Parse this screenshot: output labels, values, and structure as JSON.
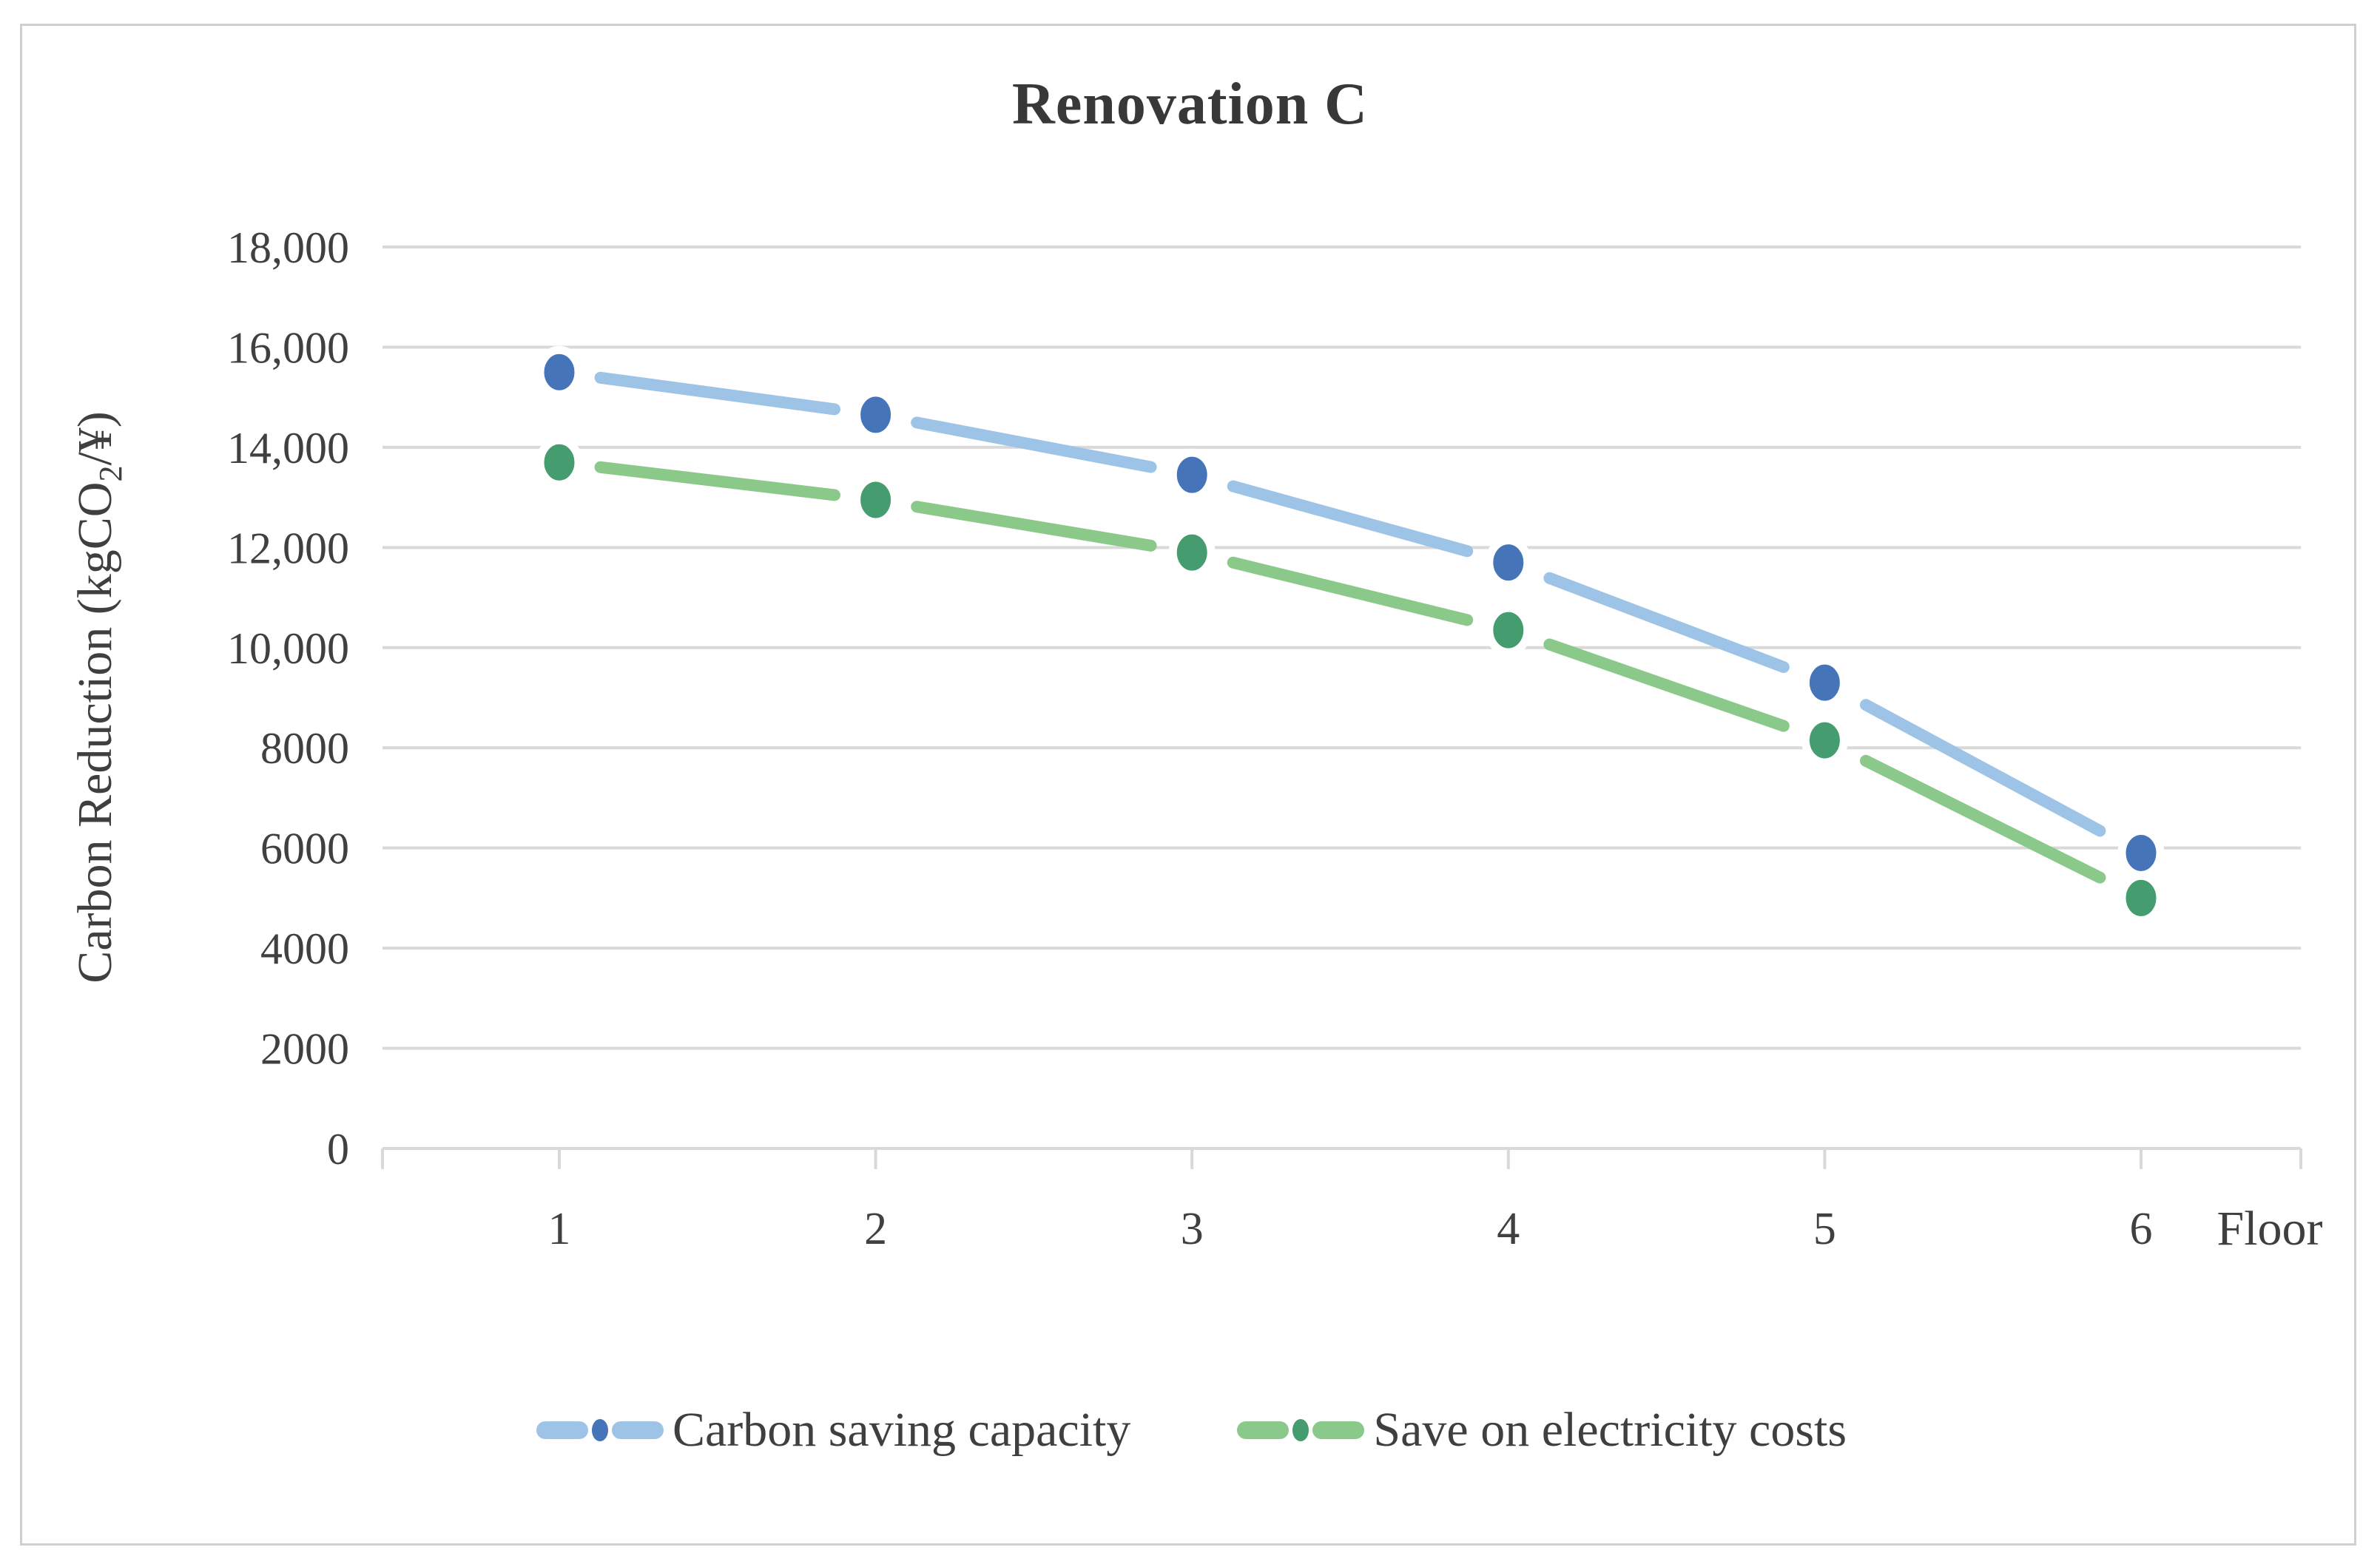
{
  "chart": {
    "title": "Renovation C",
    "xlabel": "Floor",
    "ylabel_parts": {
      "pre": "Carbon Reduction (kgCO",
      "sub": "2",
      "post": "/¥)"
    }
  },
  "chart_data": {
    "type": "line",
    "title": "Renovation C",
    "xlabel": "Floor",
    "ylabel": "Carbon Reduction (kgCO2/¥)",
    "categories": [
      "1",
      "2",
      "3",
      "4",
      "5",
      "6"
    ],
    "series": [
      {
        "name": "Carbon saving capacity",
        "values": [
          15500,
          14650,
          13450,
          11700,
          9300,
          5900
        ],
        "line_color": "#9dc3e6",
        "marker_color": "#4674b8"
      },
      {
        "name": "Save on electricity costs",
        "values": [
          13700,
          12950,
          11900,
          10350,
          8150,
          5000
        ],
        "line_color": "#8bc98a",
        "marker_color": "#459c6e"
      }
    ],
    "ylim": [
      0,
      18000
    ],
    "ytick_interval": 2000,
    "ytick_labels": [
      "0",
      "2000",
      "4000",
      "6000",
      "8000",
      "10,000",
      "12,000",
      "14,000",
      "16,000",
      "18,000"
    ],
    "grid": true,
    "legend_position": "bottom",
    "axis_color": "#d9d9d9",
    "text_color": "#404040"
  }
}
